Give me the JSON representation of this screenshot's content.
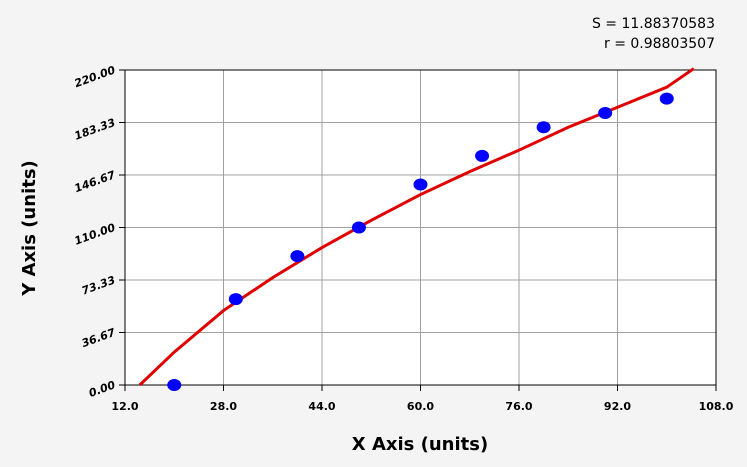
{
  "chart_data": {
    "type": "scatter",
    "xlabel": "X Axis (units)",
    "ylabel": "Y Axis (units)",
    "annotations": [
      "S = 11.88370583",
      "r = 0.98803507"
    ],
    "xlim": [
      12,
      108
    ],
    "xticks": [
      {
        "value": 12,
        "label": "12.0"
      },
      {
        "value": 28,
        "label": "28.0"
      },
      {
        "value": 44,
        "label": "44.0"
      },
      {
        "value": 60,
        "label": "60.0"
      },
      {
        "value": 76,
        "label": "76.0"
      },
      {
        "value": 92,
        "label": "92.0"
      },
      {
        "value": 108,
        "label": "108.0"
      }
    ],
    "ylim": [
      0,
      220
    ],
    "yticks": [
      {
        "value": 0,
        "label": "0.00"
      },
      {
        "value": 36.67,
        "label": "36.67"
      },
      {
        "value": 73.33,
        "label": "73.33"
      },
      {
        "value": 110,
        "label": "110.00"
      },
      {
        "value": 146.67,
        "label": "146.67"
      },
      {
        "value": 183.33,
        "label": "183.33"
      },
      {
        "value": 220,
        "label": "220.00"
      }
    ],
    "grid": true,
    "series": [
      {
        "type": "scatter",
        "color": "#0000ff",
        "x": [
          20,
          30,
          40,
          50,
          60,
          70,
          80,
          90,
          100
        ],
        "values": [
          0,
          60,
          90,
          110,
          140,
          160,
          180,
          190,
          200
        ]
      },
      {
        "type": "line",
        "color": "#e00000",
        "x": [
          14.4,
          20,
          28,
          36,
          44,
          52,
          60,
          68,
          76,
          84,
          92,
          100,
          104.4
        ],
        "values": [
          0,
          23,
          52,
          75,
          96,
          115,
          133,
          149,
          164,
          180,
          194,
          208,
          221
        ]
      }
    ]
  }
}
